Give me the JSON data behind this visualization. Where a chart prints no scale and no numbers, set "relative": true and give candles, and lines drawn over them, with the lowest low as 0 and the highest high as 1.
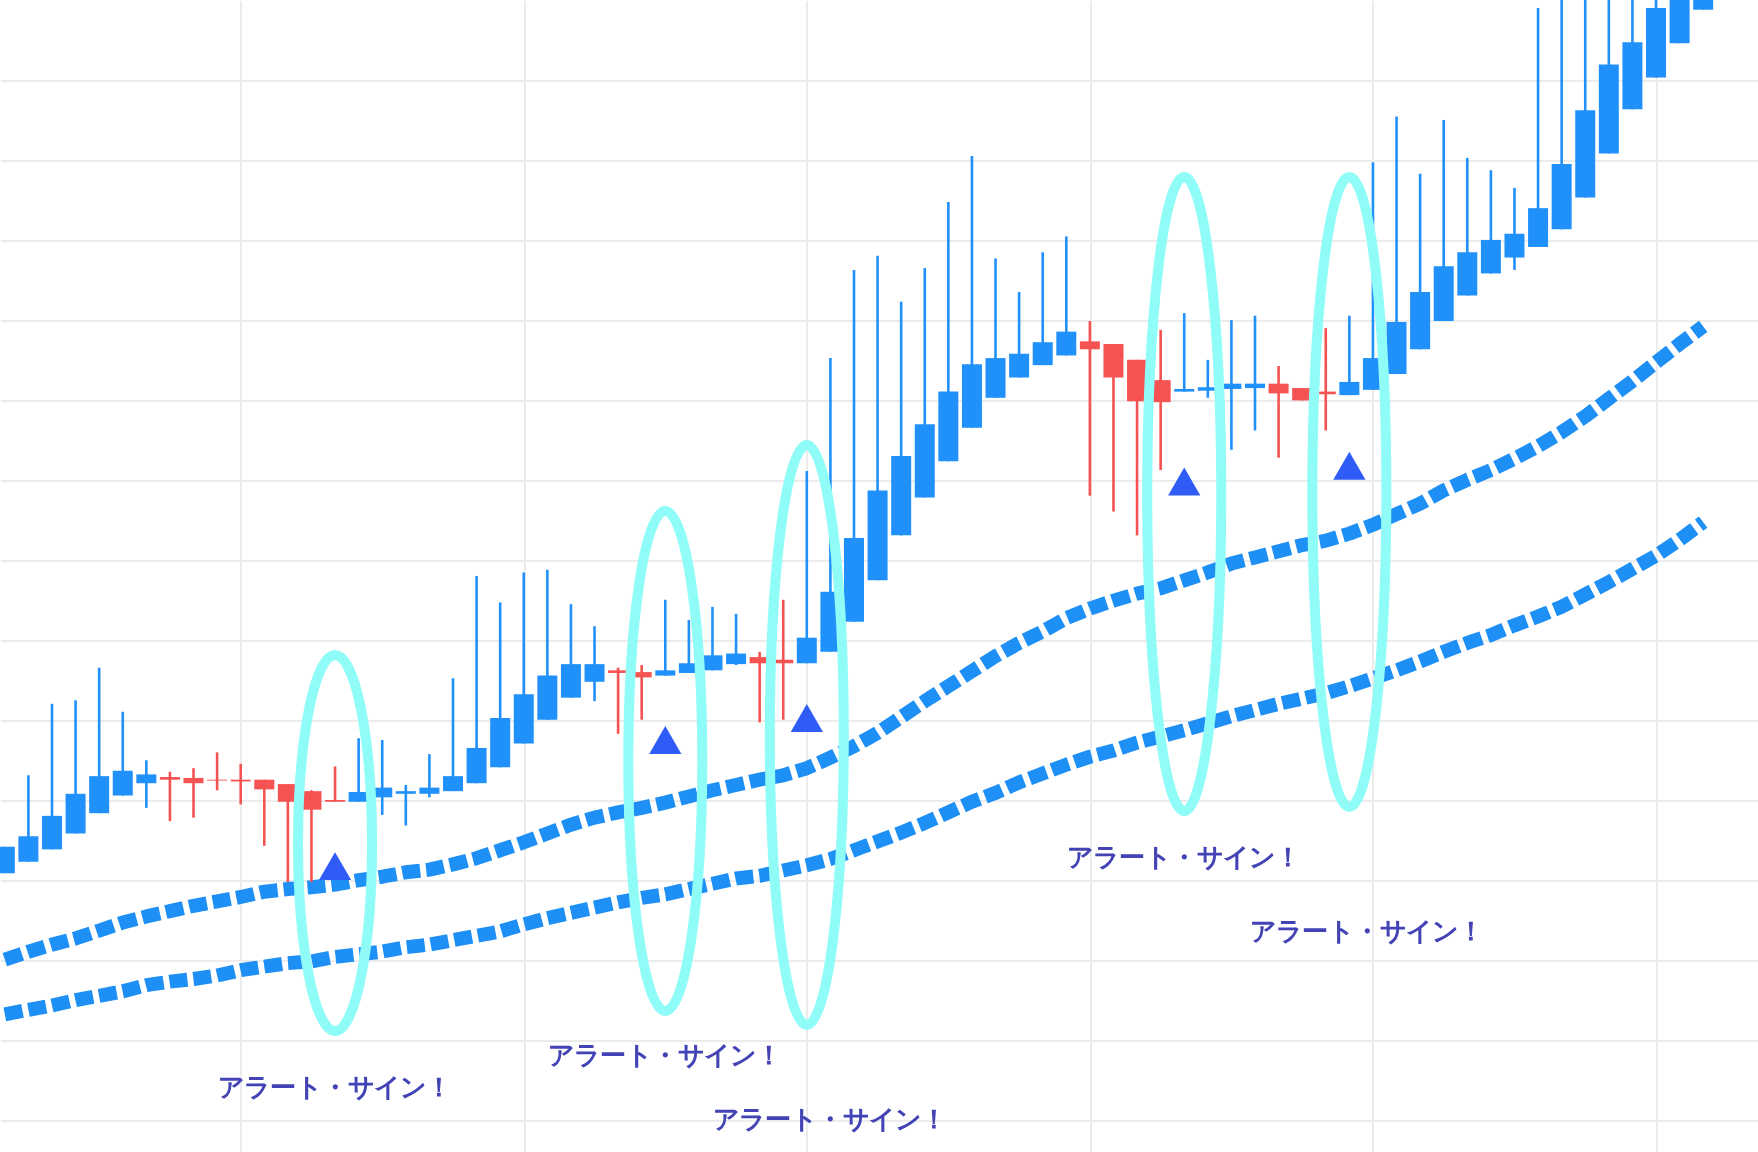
{
  "chart_data": {
    "type": "candlestick",
    "relative": true,
    "grid": true,
    "categories": [
      null,
      null,
      null,
      null,
      null,
      null,
      null,
      null,
      null,
      null,
      null,
      null,
      null,
      null,
      null,
      null,
      null,
      null,
      null,
      null,
      null,
      null,
      null,
      null,
      null,
      null,
      null,
      null,
      null,
      null,
      null,
      null,
      null,
      null,
      null,
      null,
      null,
      null,
      null,
      null,
      null,
      null,
      null,
      null,
      null,
      null,
      null,
      null,
      null,
      null,
      null,
      null,
      null,
      null,
      null,
      null,
      null,
      null,
      null,
      null,
      null,
      null,
      null,
      null,
      null,
      null,
      null,
      null,
      null,
      null,
      null,
      null,
      null
    ],
    "ohlc": [
      [
        0.01,
        0.04,
        0.01,
        0.04
      ],
      [
        0.023,
        0.121,
        0.023,
        0.052
      ],
      [
        0.037,
        0.202,
        0.037,
        0.075
      ],
      [
        0.055,
        0.206,
        0.055,
        0.1
      ],
      [
        0.078,
        0.243,
        0.078,
        0.12
      ],
      [
        0.098,
        0.193,
        0.098,
        0.126
      ],
      [
        0.112,
        0.138,
        0.084,
        0.122
      ],
      [
        0.119,
        0.125,
        0.069,
        0.116
      ],
      [
        0.118,
        0.129,
        0.073,
        0.112
      ],
      [
        0.116,
        0.147,
        0.104,
        0.115
      ],
      [
        0.116,
        0.134,
        0.088,
        0.114
      ],
      [
        0.116,
        0.116,
        0.041,
        0.105
      ],
      [
        0.111,
        0.111,
        0,
        0.091
      ],
      [
        0.103,
        0.104,
        0,
        0.082
      ],
      [
        0.093,
        0.131,
        0.091,
        0.091
      ],
      [
        0.091,
        0.163,
        0.091,
        0.102
      ],
      [
        0.096,
        0.161,
        0.076,
        0.107
      ],
      [
        0.1,
        0.11,
        0.064,
        0.103
      ],
      [
        0.1,
        0.145,
        0.096,
        0.107
      ],
      [
        0.103,
        0.231,
        0.103,
        0.12
      ],
      [
        0.112,
        0.347,
        0.112,
        0.152
      ],
      [
        0.13,
        0.317,
        0.13,
        0.186
      ],
      [
        0.157,
        0.351,
        0.157,
        0.213
      ],
      [
        0.184,
        0.354,
        0.184,
        0.234
      ],
      [
        0.209,
        0.315,
        0.209,
        0.247
      ],
      [
        0.227,
        0.29,
        0.205,
        0.247
      ],
      [
        0.24,
        0.243,
        0.168,
        0.237
      ],
      [
        0.238,
        0.246,
        0.184,
        0.232
      ],
      [
        0.234,
        0.32,
        0.234,
        0.24
      ],
      [
        0.237,
        0.297,
        0.237,
        0.248
      ],
      [
        0.24,
        0.312,
        0.24,
        0.257
      ],
      [
        0.247,
        0.304,
        0.246,
        0.259
      ],
      [
        0.255,
        0.261,
        0.181,
        0.248
      ],
      [
        0.252,
        0.32,
        0.184,
        0.248
      ],
      [
        0.248,
        0.466,
        0.248,
        0.277
      ],
      [
        0.261,
        0.594,
        0.261,
        0.329
      ],
      [
        0.295,
        0.694,
        0.295,
        0.39
      ],
      [
        0.342,
        0.71,
        0.342,
        0.444
      ],
      [
        0.393,
        0.658,
        0.393,
        0.483
      ],
      [
        0.436,
        0.696,
        0.436,
        0.519
      ],
      [
        0.477,
        0.771,
        0.477,
        0.556
      ],
      [
        0.515,
        0.823,
        0.515,
        0.587
      ],
      [
        0.549,
        0.707,
        0.549,
        0.594
      ],
      [
        0.572,
        0.669,
        0.572,
        0.599
      ],
      [
        0.586,
        0.714,
        0.586,
        0.612
      ],
      [
        0.597,
        0.732,
        0.597,
        0.624
      ],
      [
        0.613,
        0.636,
        0.438,
        0.604
      ],
      [
        0.61,
        0.61,
        0.42,
        0.572
      ],
      [
        0.592,
        0.592,
        0.393,
        0.545
      ],
      [
        0.569,
        0.626,
        0.467,
        0.544
      ],
      [
        0.556,
        0.645,
        0.556,
        0.559
      ],
      [
        0.557,
        0.592,
        0.549,
        0.561
      ],
      [
        0.559,
        0.637,
        0.49,
        0.565
      ],
      [
        0.56,
        0.642,
        0.512,
        0.565
      ],
      [
        0.565,
        0.585,
        0.481,
        0.554
      ],
      [
        0.56,
        0.56,
        0.546,
        0.546
      ],
      [
        0.556,
        0.628,
        0.512,
        0.553
      ],
      [
        0.552,
        0.642,
        0.552,
        0.567
      ],
      [
        0.558,
        0.816,
        0.558,
        0.594
      ],
      [
        0.576,
        0.868,
        0.576,
        0.635
      ],
      [
        0.604,
        0.803,
        0.604,
        0.669
      ],
      [
        0.636,
        0.864,
        0.636,
        0.698
      ],
      [
        0.665,
        0.821,
        0.665,
        0.714
      ],
      [
        0.69,
        0.807,
        0.69,
        0.728
      ],
      [
        0.708,
        0.787,
        0.694,
        0.735
      ],
      [
        0.72,
        0.991,
        0.72,
        0.764
      ],
      [
        0.74,
        1,
        0.74,
        0.814
      ],
      [
        0.776,
        1,
        0.776,
        0.875
      ],
      [
        0.826,
        1,
        0.826,
        0.927
      ],
      [
        0.876,
        1,
        0.876,
        0.952
      ],
      [
        0.912,
        1,
        0.912,
        0.991
      ],
      [
        0.951,
        1,
        0.951,
        1
      ],
      [
        0.989,
        1,
        0.989,
        1
      ]
    ],
    "colors": [
      "#2090fa",
      "#2090fa",
      "#2090fa",
      "#2090fa",
      "#2090fa",
      "#2090fa",
      "#2090fa",
      "#f55252",
      "#f55252",
      "#f55252",
      "#f55252",
      "#f55252",
      "#f55252",
      "#f55252",
      "#f55252",
      "#2090fa",
      "#2090fa",
      "#2090fa",
      "#2090fa",
      "#2090fa",
      "#2090fa",
      "#2090fa",
      "#2090fa",
      "#2090fa",
      "#2090fa",
      "#2090fa",
      "#f55252",
      "#f55252",
      "#2090fa",
      "#2090fa",
      "#2090fa",
      "#2090fa",
      "#f55252",
      "#f55252",
      "#2090fa",
      "#2090fa",
      "#2090fa",
      "#2090fa",
      "#2090fa",
      "#2090fa",
      "#2090fa",
      "#2090fa",
      "#2090fa",
      "#2090fa",
      "#2090fa",
      "#2090fa",
      "#f55252",
      "#f55252",
      "#f55252",
      "#f55252",
      "#2090fa",
      "#2090fa",
      "#2090fa",
      "#2090fa",
      "#f55252",
      "#f55252",
      "#f55252",
      "#2090fa",
      "#2090fa",
      "#2090fa",
      "#2090fa",
      "#2090fa",
      "#2090fa",
      "#2090fa",
      "#2090fa",
      "#2090fa",
      "#2090fa",
      "#2090fa",
      "#2090fa",
      "#2090fa",
      "#2090fa",
      "#2090fa",
      "#2090fa"
    ],
    "line_style": "dashed",
    "series": [
      {
        "type": "line",
        "color": "#1e8ff5",
        "values": [
          -0.088,
          -0.079,
          -0.071,
          -0.064,
          -0.055,
          -0.046,
          -0.039,
          -0.033,
          -0.027,
          -0.022,
          -0.017,
          -0.011,
          -0.008,
          -0.006,
          -0.003,
          0.002,
          0.006,
          0.011,
          0.014,
          0.02,
          0.027,
          0.036,
          0.045,
          0.055,
          0.065,
          0.073,
          0.079,
          0.084,
          0.09,
          0.097,
          0.104,
          0.11,
          0.116,
          0.121,
          0.129,
          0.141,
          0.154,
          0.169,
          0.187,
          0.205,
          0.222,
          0.239,
          0.256,
          0.271,
          0.284,
          0.299,
          0.31,
          0.319,
          0.327,
          0.333,
          0.342,
          0.351,
          0.361,
          0.368,
          0.375,
          0.382,
          0.387,
          0.395,
          0.405,
          0.417,
          0.429,
          0.444,
          0.456,
          0.467,
          0.48,
          0.494,
          0.51,
          0.528,
          0.548,
          0.568,
          0.589,
          0.61,
          0.63
        ]
      },
      {
        "type": "line",
        "color": "#1e8ff5",
        "values": [
          -0.15,
          -0.145,
          -0.14,
          -0.134,
          -0.129,
          -0.124,
          -0.117,
          -0.113,
          -0.11,
          -0.106,
          -0.1,
          -0.096,
          -0.092,
          -0.09,
          -0.085,
          -0.082,
          -0.079,
          -0.074,
          -0.071,
          -0.066,
          -0.061,
          -0.056,
          -0.048,
          -0.041,
          -0.035,
          -0.029,
          -0.023,
          -0.018,
          -0.014,
          -0.008,
          -0.002,
          0.004,
          0.007,
          0.013,
          0.019,
          0.026,
          0.036,
          0.046,
          0.056,
          0.067,
          0.079,
          0.091,
          0.101,
          0.113,
          0.123,
          0.133,
          0.142,
          0.149,
          0.158,
          0.165,
          0.172,
          0.18,
          0.188,
          0.195,
          0.202,
          0.208,
          0.214,
          0.222,
          0.231,
          0.24,
          0.25,
          0.261,
          0.271,
          0.28,
          0.291,
          0.301,
          0.312,
          0.326,
          0.34,
          0.355,
          0.37,
          0.388,
          0.408
        ]
      },
      {
        "type": "scatter",
        "marker": "triangle",
        "color": "#2f5cf6",
        "values": [
          null,
          null,
          null,
          null,
          null,
          null,
          null,
          null,
          null,
          null,
          null,
          null,
          null,
          null,
          0.018,
          null,
          null,
          null,
          null,
          null,
          null,
          null,
          null,
          null,
          null,
          null,
          null,
          null,
          0.161,
          null,
          null,
          null,
          null,
          null,
          0.186,
          null,
          null,
          null,
          null,
          null,
          null,
          null,
          null,
          null,
          null,
          null,
          null,
          null,
          null,
          null,
          0.454,
          null,
          null,
          null,
          null,
          null,
          null,
          0.472,
          null,
          null,
          null,
          null,
          null,
          null,
          null,
          null,
          null,
          null,
          null,
          null,
          null,
          null,
          null
        ]
      }
    ],
    "annotations": [
      "アラート・サイン！",
      "アラート・サイン！",
      "アラート・サイン！",
      "アラート・サイン！",
      "アラート・サイン！"
    ]
  }
}
